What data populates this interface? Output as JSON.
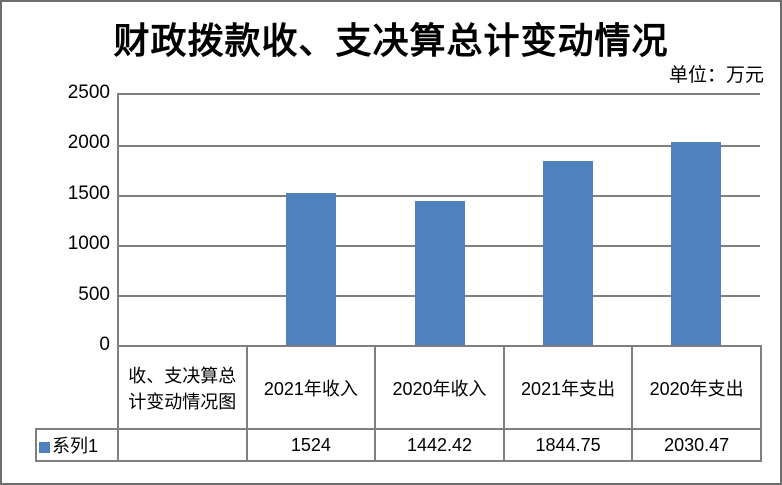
{
  "title": "财政拨款收、支决算总计变动情况",
  "unit_label": "单位：万元",
  "y_axis": {
    "ticks": [
      "2500",
      "2000",
      "1500",
      "1000",
      "500",
      "0"
    ]
  },
  "legend": {
    "series_label": "系列1",
    "marker_color": "#4F81BD"
  },
  "table": {
    "header": [
      "收、支决算总计变动情况图",
      "2021年收入",
      "2020年收入",
      "2021年支出",
      "2020年支出"
    ],
    "values": [
      "",
      "1524",
      "1442.42",
      "1844.75",
      "2030.47"
    ]
  },
  "chart_data": {
    "type": "bar",
    "title": "财政拨款收、支决算总计变动情况",
    "unit": "万元",
    "categories": [
      "收、支决算总计变动情况图",
      "2021年收入",
      "2020年收入",
      "2021年支出",
      "2020年支出"
    ],
    "series": [
      {
        "name": "系列1",
        "values": [
          null,
          1524,
          1442.42,
          1844.75,
          2030.47
        ]
      }
    ],
    "ylim": [
      0,
      2500
    ],
    "ytick_interval": 500,
    "grid": true,
    "gridline_color": "#7f7f7f",
    "bar_color": "#4F81BD",
    "legend_position": "bottom-left",
    "data_table_shown": true
  }
}
